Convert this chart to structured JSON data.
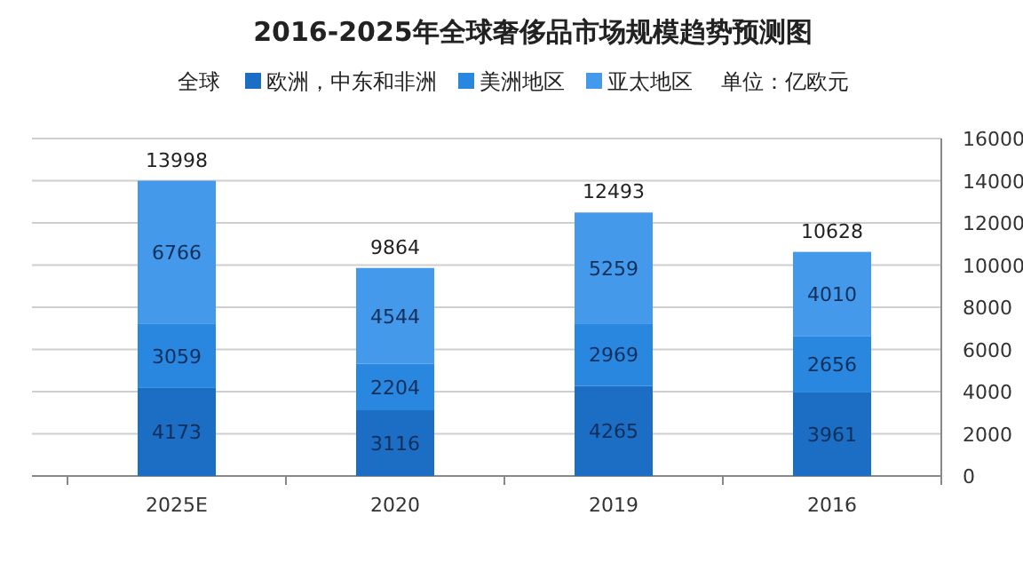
{
  "chart_data": {
    "type": "bar",
    "title": "2016-2025年全球奢侈品市场规模趋势预测图",
    "ylabel": "单位：亿欧元",
    "stacked": true,
    "categories": [
      "2025E",
      "2020",
      "2019",
      "2016"
    ],
    "series": [
      {
        "name": "欧洲，中东和非洲",
        "color": "#1c6dc4",
        "values": [
          4173,
          3116,
          4265,
          3961
        ]
      },
      {
        "name": "美洲地区",
        "color": "#2a87e0",
        "values": [
          3059,
          2204,
          2969,
          2656
        ]
      },
      {
        "name": "亚太地区",
        "color": "#4499ea",
        "values": [
          6766,
          4544,
          5259,
          4010
        ]
      }
    ],
    "data_labels": true,
    "totals": [
      "13998",
      "9864",
      "12493",
      "10628"
    ],
    "annotations": [
      "全球"
    ],
    "ylim": [
      0,
      16000
    ],
    "yticks": [
      0,
      2000,
      4000,
      6000,
      8000,
      10000,
      12000,
      14000,
      16000
    ],
    "grid": "y",
    "legend": "top"
  }
}
